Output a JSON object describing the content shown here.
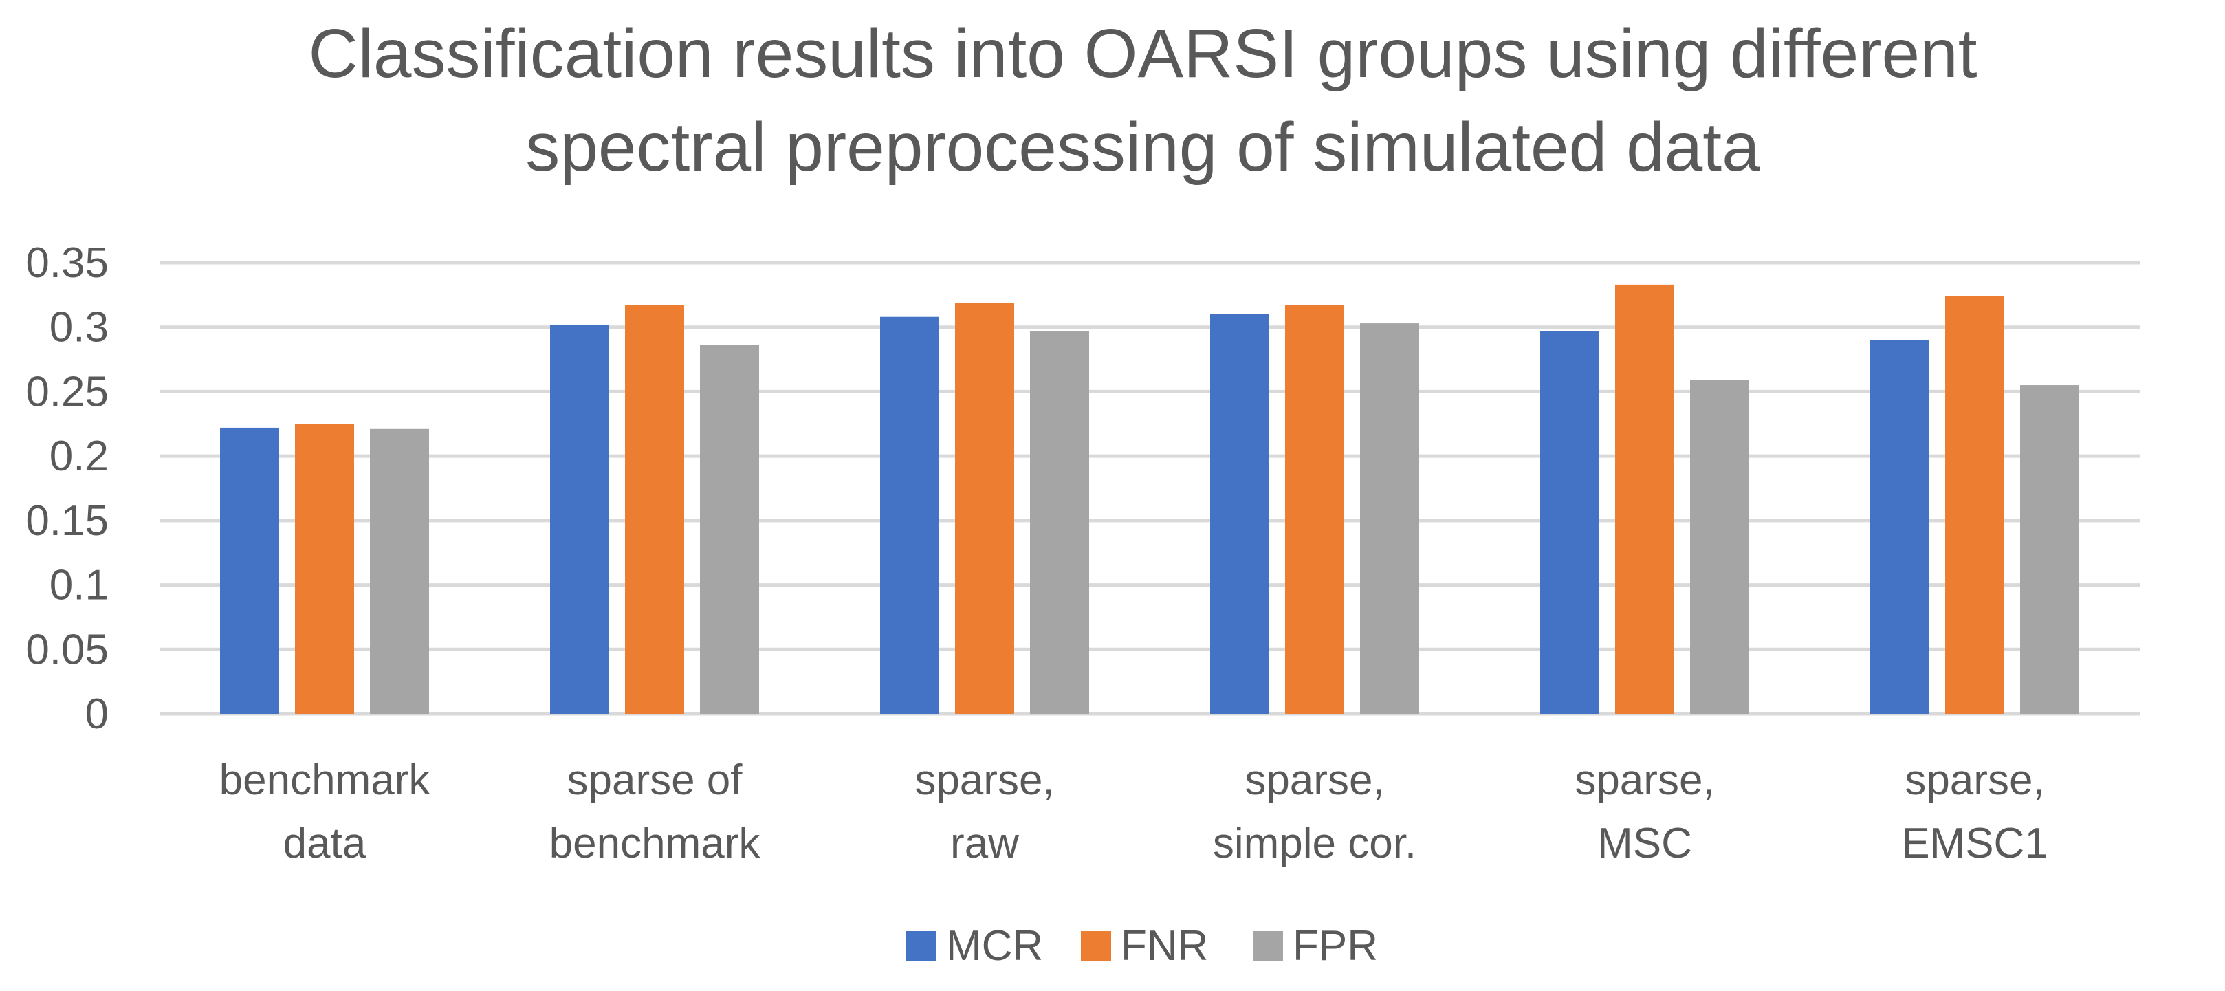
{
  "chart_data": {
    "type": "bar",
    "title_lines": [
      "Classification results into OARSI groups using different",
      "spectral preprocessing of simulated data"
    ],
    "xlabel": "",
    "ylabel": "",
    "ylim": [
      0,
      0.35
    ],
    "yticks": [
      "0",
      "0.05",
      "0.1",
      "0.15",
      "0.2",
      "0.25",
      "0.3",
      "0.35"
    ],
    "grid": true,
    "legend_position": "bottom",
    "categories": [
      [
        "benchmark",
        "data"
      ],
      [
        "sparse of",
        "benchmark"
      ],
      [
        "sparse,",
        "raw"
      ],
      [
        "sparse,",
        "simple cor."
      ],
      [
        "sparse,",
        "MSC"
      ],
      [
        "sparse,",
        "EMSC1"
      ]
    ],
    "series": [
      {
        "name": "MCR",
        "color": "#4472C4",
        "values": [
          0.222,
          0.302,
          0.308,
          0.31,
          0.297,
          0.29
        ]
      },
      {
        "name": "FNR",
        "color": "#ED7D31",
        "values": [
          0.225,
          0.317,
          0.319,
          0.317,
          0.333,
          0.324
        ]
      },
      {
        "name": "FPR",
        "color": "#A5A5A5",
        "values": [
          0.221,
          0.286,
          0.297,
          0.303,
          0.259,
          0.255
        ]
      }
    ]
  }
}
